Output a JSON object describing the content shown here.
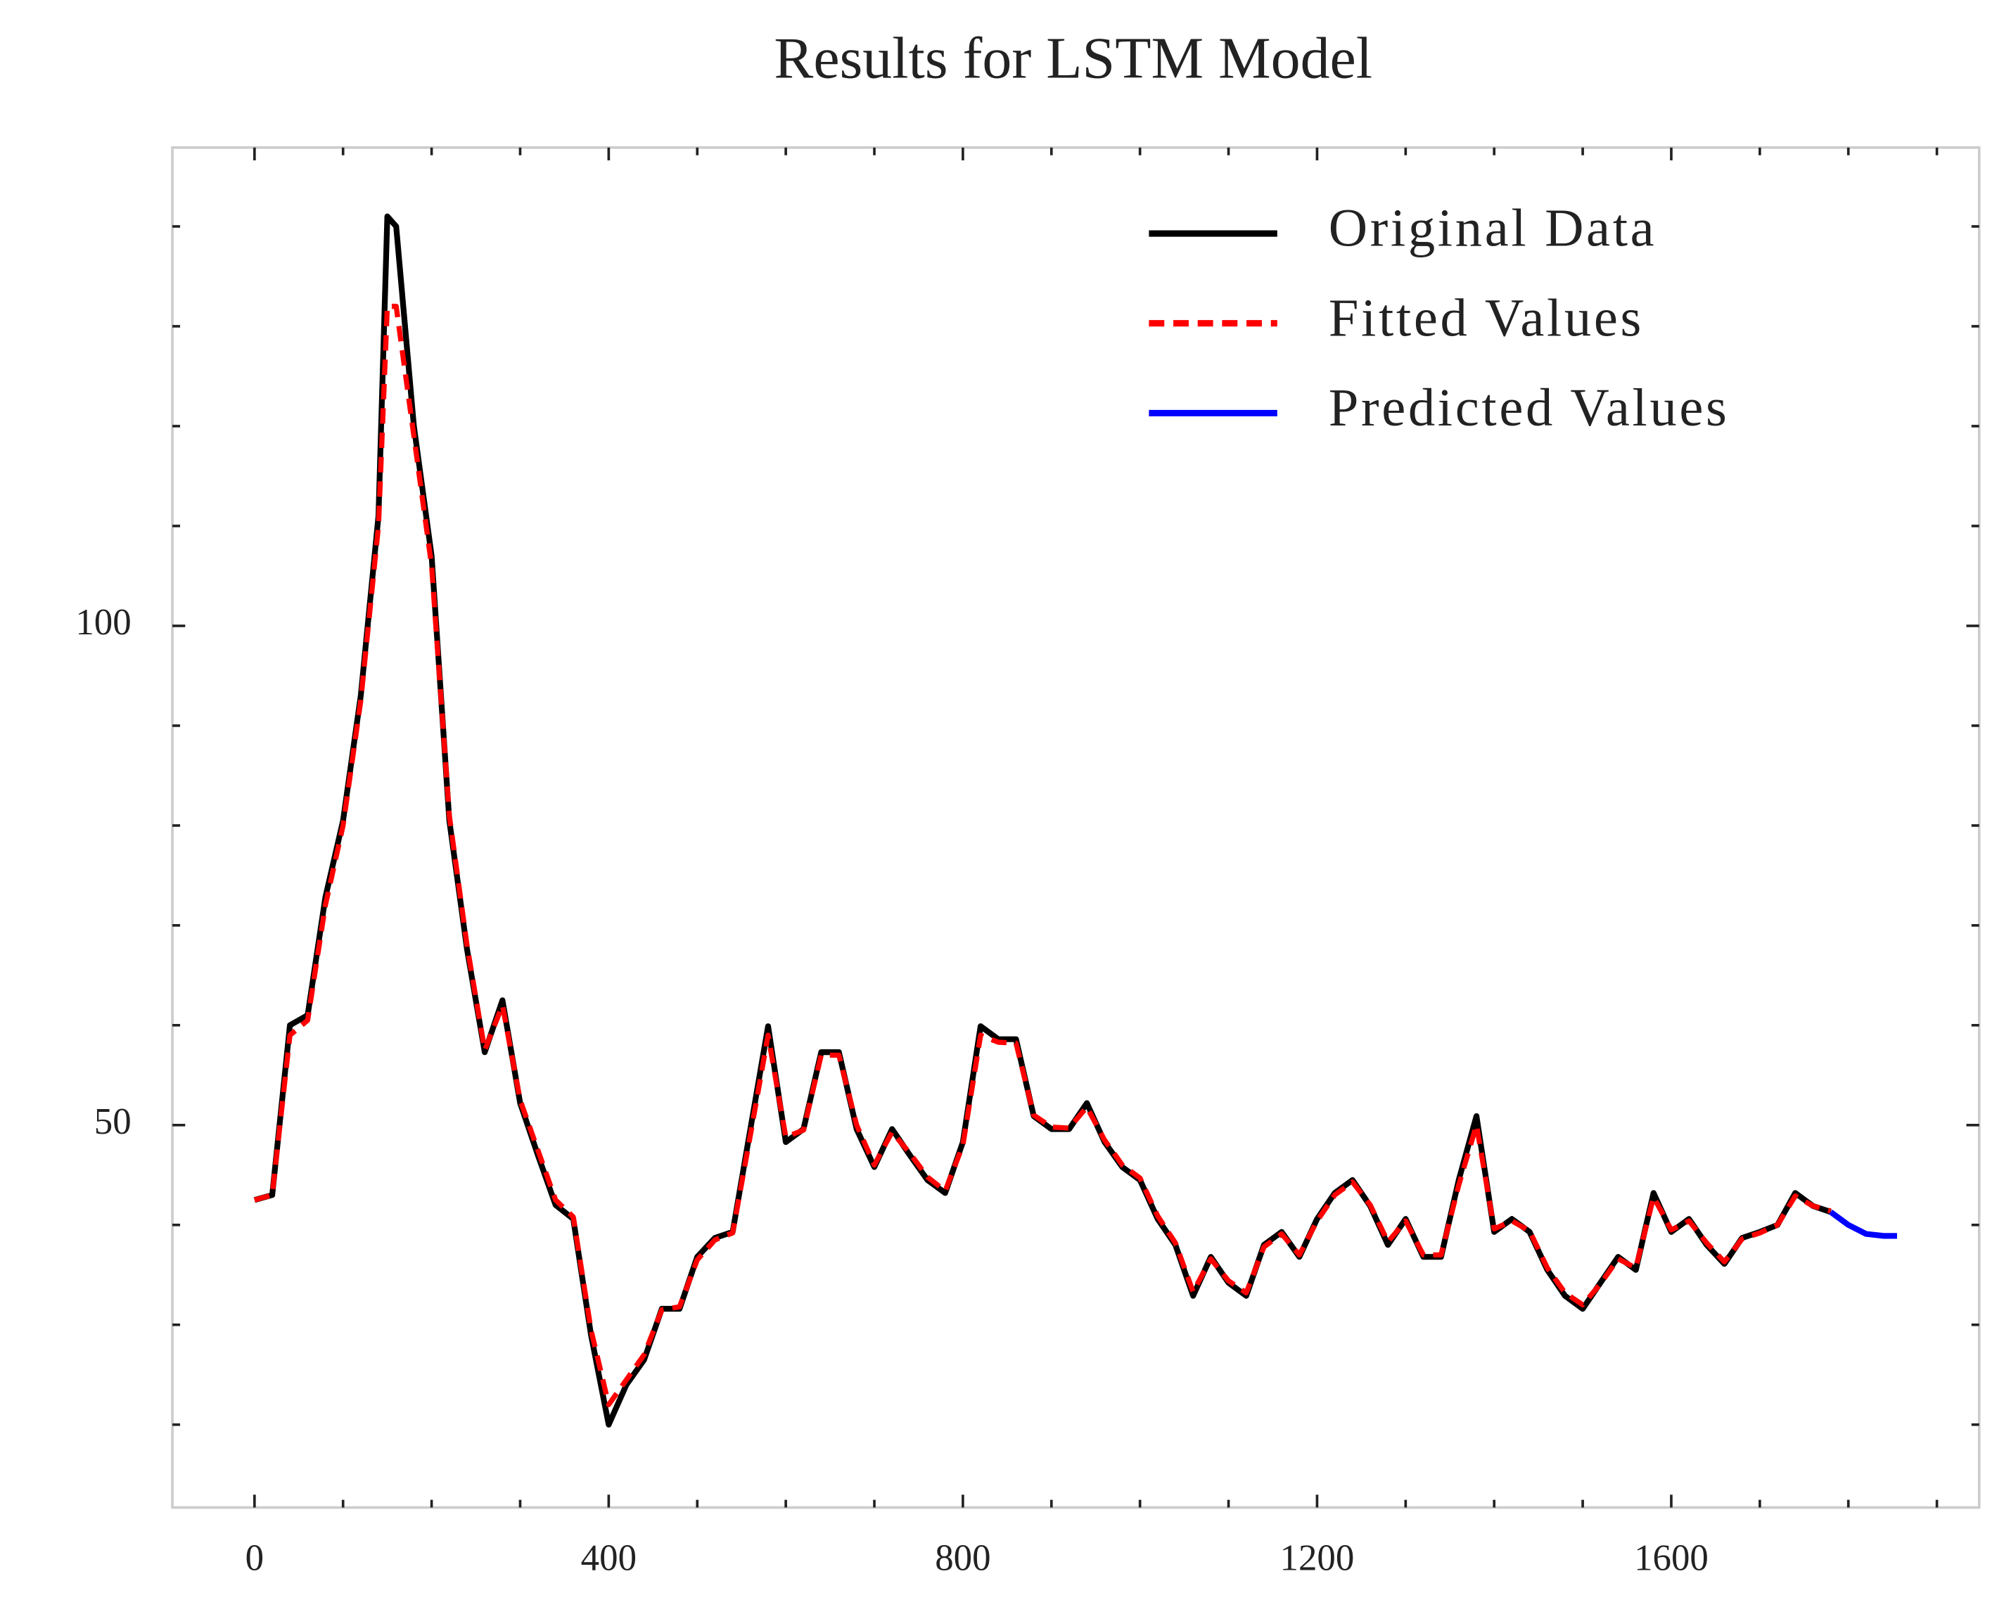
{
  "chart_data": {
    "type": "line",
    "title": "Results for LSTM Model",
    "x": [
      0,
      20,
      40,
      60,
      80,
      100,
      120,
      140,
      150,
      160,
      180,
      200,
      220,
      240,
      260,
      280,
      300,
      320,
      340,
      360,
      380,
      400,
      420,
      440,
      460,
      480,
      500,
      520,
      540,
      560,
      580,
      600,
      620,
      640,
      660,
      680,
      700,
      720,
      740,
      760,
      780,
      800,
      820,
      840,
      860,
      880,
      900,
      920,
      940,
      960,
      980,
      1000,
      1020,
      1040,
      1060,
      1080,
      1100,
      1120,
      1140,
      1160,
      1180,
      1200,
      1220,
      1240,
      1260,
      1280,
      1300,
      1320,
      1340,
      1360,
      1380,
      1400,
      1420,
      1440,
      1460,
      1480,
      1500,
      1520,
      1540,
      1560,
      1580,
      1600,
      1620,
      1640,
      1660,
      1680,
      1700,
      1720,
      1740,
      1760,
      1780,
      1800,
      1820,
      1840,
      1855
    ],
    "series": [
      {
        "name": "Original Data",
        "color": "#000000",
        "linestyle": "solid",
        "values": [
          42.5,
          43,
          60,
          61,
          72.8,
          80.5,
          93,
          111,
          141,
          140,
          120,
          107,
          80.5,
          67.6,
          57.3,
          62.5,
          52.2,
          47,
          42,
          40.6,
          29,
          20,
          24,
          26.5,
          31.6,
          31.6,
          36.8,
          38.7,
          39.3,
          49.6,
          59.9,
          48.3,
          49.6,
          57.3,
          57.3,
          49.6,
          45.8,
          49.6,
          47,
          44.5,
          43.2,
          48.3,
          59.9,
          58.6,
          58.6,
          50.9,
          49.6,
          49.6,
          52.2,
          48.3,
          45.8,
          44.5,
          40.6,
          38,
          32.9,
          36.8,
          34.2,
          32.9,
          38,
          39.3,
          36.8,
          40.6,
          43.2,
          44.5,
          41.9,
          38,
          40.6,
          36.8,
          36.8,
          44.5,
          50.9,
          39.3,
          40.6,
          39.3,
          35.5,
          32.9,
          31.6,
          34.2,
          36.8,
          35.5,
          43.2,
          39.3,
          40.6,
          38,
          36.1,
          38.7,
          39.3,
          40,
          43.2,
          41.9,
          41.3,
          null,
          null,
          null,
          null
        ]
      },
      {
        "name": "Fitted Values",
        "color": "#ff0000",
        "linestyle": "dashed",
        "values": [
          42.5,
          43,
          59,
          60.5,
          72,
          80,
          92.5,
          110,
          132,
          132,
          119,
          106,
          81,
          68,
          57.5,
          62,
          52.5,
          47.5,
          42.5,
          40.8,
          29.5,
          22,
          24.5,
          27,
          31.5,
          31.8,
          36.5,
          38.5,
          39.2,
          49,
          59,
          48.8,
          49.5,
          57,
          57,
          50,
          46,
          49.3,
          47.2,
          44.8,
          43.4,
          48,
          59,
          58.3,
          58.2,
          51,
          49.8,
          49.7,
          51.8,
          48.5,
          46,
          44.7,
          40.9,
          38.2,
          33.3,
          36.6,
          34.4,
          33.2,
          37.8,
          39.1,
          37,
          40.4,
          43,
          44.3,
          42,
          38.3,
          40.4,
          37,
          37,
          44,
          50,
          39.6,
          40.4,
          39.4,
          35.7,
          33.2,
          32,
          34.1,
          36.6,
          35.7,
          42.8,
          39.5,
          40.4,
          38.2,
          36.3,
          38.6,
          39.2,
          40,
          42.9,
          41.9,
          41.4,
          null,
          null,
          null,
          null
        ]
      },
      {
        "name": "Predicted Values",
        "color": "#0000ff",
        "linestyle": "solid",
        "values": [
          null,
          null,
          null,
          null,
          null,
          null,
          null,
          null,
          null,
          null,
          null,
          null,
          null,
          null,
          null,
          null,
          null,
          null,
          null,
          null,
          null,
          null,
          null,
          null,
          null,
          null,
          null,
          null,
          null,
          null,
          null,
          null,
          null,
          null,
          null,
          null,
          null,
          null,
          null,
          null,
          null,
          null,
          null,
          null,
          null,
          null,
          null,
          null,
          null,
          null,
          null,
          null,
          null,
          null,
          null,
          null,
          null,
          null,
          null,
          null,
          null,
          null,
          null,
          null,
          null,
          null,
          null,
          null,
          null,
          null,
          null,
          null,
          null,
          null,
          null,
          null,
          null,
          null,
          null,
          null,
          null,
          null,
          null,
          null,
          null,
          null,
          null,
          null,
          null,
          null,
          41.3,
          40,
          39.1,
          38.9,
          38.9
        ]
      }
    ],
    "xlim": [
      -92.75,
      1947.75
    ],
    "xticks": [
      0,
      400,
      800,
      1200,
      1600
    ],
    "xminorticks": [
      100,
      200,
      300,
      500,
      600,
      700,
      900,
      1000,
      1100,
      1300,
      1400,
      1500,
      1700,
      1800,
      1900
    ],
    "ylim": [
      11.7,
      147.9
    ],
    "yticks": [
      50,
      100
    ],
    "yminorticks": [
      20,
      30,
      40,
      60,
      70,
      80,
      90,
      110,
      120,
      130,
      140
    ],
    "legend": "upper right"
  }
}
